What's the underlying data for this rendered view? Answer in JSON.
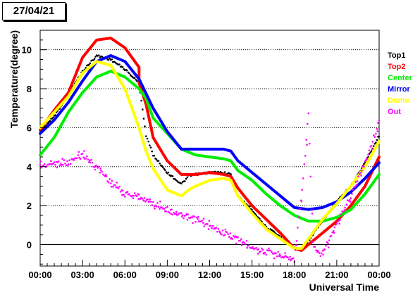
{
  "date_label": "27/04/21",
  "chart_data": {
    "type": "line",
    "title": "",
    "xlabel": "Universal Time",
    "ylabel": "Temperature(degree)",
    "xlim": [
      0,
      24
    ],
    "ylim": [
      -1.1,
      11.0
    ],
    "grid": "horizontal dotted",
    "legend_position": "right",
    "x_tick_labels": [
      "00:00",
      "03:00",
      "06:00",
      "09:00",
      "12:00",
      "15:00",
      "18:00",
      "21:00",
      "00:00"
    ],
    "x_ticks": [
      0,
      3,
      6,
      9,
      12,
      15,
      18,
      21,
      24
    ],
    "y_ticks": [
      0,
      2,
      4,
      6,
      8,
      10
    ],
    "y_tick_labels": [
      "0",
      "2",
      "4",
      "6",
      "8",
      "10"
    ],
    "series": [
      {
        "name": "Top1",
        "color": "#000000",
        "style": "dots",
        "points": [
          [
            0,
            5.8
          ],
          [
            1,
            6.6
          ],
          [
            2,
            7.7
          ],
          [
            3,
            8.9
          ],
          [
            4,
            9.7
          ],
          [
            5,
            9.5
          ],
          [
            6,
            9.0
          ],
          [
            7,
            8.3
          ],
          [
            7.5,
            5.6
          ],
          [
            8,
            4.6
          ],
          [
            9,
            3.7
          ],
          [
            10,
            3.1
          ],
          [
            10.5,
            3.5
          ],
          [
            11,
            3.6
          ],
          [
            12,
            3.7
          ],
          [
            13,
            3.7
          ],
          [
            13.5,
            3.6
          ],
          [
            14,
            2.5
          ],
          [
            15,
            1.8
          ],
          [
            16,
            0.9
          ],
          [
            17,
            0.4
          ],
          [
            18,
            -0.2
          ],
          [
            18.5,
            -0.2
          ],
          [
            19,
            0.2
          ],
          [
            20,
            1.2
          ],
          [
            21,
            2.2
          ],
          [
            22,
            3.0
          ],
          [
            23,
            4.2
          ],
          [
            24,
            5.6
          ]
        ]
      },
      {
        "name": "Top2",
        "color": "#ff0000",
        "style": "line",
        "points": [
          [
            0,
            5.9
          ],
          [
            1,
            6.9
          ],
          [
            2,
            7.8
          ],
          [
            3,
            9.6
          ],
          [
            4,
            10.5
          ],
          [
            5,
            10.6
          ],
          [
            6,
            10.1
          ],
          [
            7,
            9.1
          ],
          [
            7,
            8.3
          ],
          [
            7.5,
            7.2
          ],
          [
            8,
            5.5
          ],
          [
            9,
            4.3
          ],
          [
            10,
            3.6
          ],
          [
            11,
            3.6
          ],
          [
            12,
            3.7
          ],
          [
            13,
            3.6
          ],
          [
            13.5,
            3.5
          ],
          [
            14,
            2.9
          ],
          [
            15,
            2.0
          ],
          [
            16,
            1.3
          ],
          [
            17,
            0.6
          ],
          [
            18,
            -0.2
          ],
          [
            18.5,
            -0.3
          ],
          [
            19,
            0.0
          ],
          [
            20,
            0.6
          ],
          [
            21,
            1.2
          ],
          [
            22,
            2.0
          ],
          [
            23,
            3.0
          ],
          [
            24,
            4.5
          ]
        ]
      },
      {
        "name": "Center",
        "color": "#00ee00",
        "style": "line",
        "points": [
          [
            0,
            4.6
          ],
          [
            1,
            5.5
          ],
          [
            2,
            6.8
          ],
          [
            3,
            7.8
          ],
          [
            4,
            8.6
          ],
          [
            5,
            8.9
          ],
          [
            6,
            8.6
          ],
          [
            7,
            8.0
          ],
          [
            7.5,
            7.5
          ],
          [
            8,
            6.5
          ],
          [
            9,
            5.7
          ],
          [
            10,
            4.9
          ],
          [
            11,
            4.6
          ],
          [
            12,
            4.5
          ],
          [
            13,
            4.4
          ],
          [
            13.5,
            4.3
          ],
          [
            14,
            3.8
          ],
          [
            15,
            3.3
          ],
          [
            16,
            2.6
          ],
          [
            17,
            2.0
          ],
          [
            18,
            1.5
          ],
          [
            19,
            1.2
          ],
          [
            20,
            1.2
          ],
          [
            21,
            1.4
          ],
          [
            22,
            1.8
          ],
          [
            23,
            2.6
          ],
          [
            24,
            3.6
          ]
        ]
      },
      {
        "name": "Mirror",
        "color": "#0000ff",
        "style": "line",
        "points": [
          [
            0,
            5.7
          ],
          [
            1,
            6.4
          ],
          [
            2,
            7.3
          ],
          [
            3,
            8.4
          ],
          [
            4,
            9.4
          ],
          [
            5,
            9.7
          ],
          [
            6,
            9.4
          ],
          [
            7,
            8.5
          ],
          [
            8,
            7.0
          ],
          [
            9,
            5.8
          ],
          [
            10,
            4.9
          ],
          [
            11,
            4.9
          ],
          [
            12,
            4.9
          ],
          [
            13,
            4.9
          ],
          [
            13.5,
            4.8
          ],
          [
            14,
            4.3
          ],
          [
            15,
            3.7
          ],
          [
            16,
            3.1
          ],
          [
            17,
            2.5
          ],
          [
            18,
            1.9
          ],
          [
            19,
            1.8
          ],
          [
            20,
            1.9
          ],
          [
            21,
            2.2
          ],
          [
            22,
            2.7
          ],
          [
            23,
            3.4
          ],
          [
            24,
            4.2
          ]
        ]
      },
      {
        "name": "Dome",
        "color": "#ffff00",
        "style": "line",
        "points": [
          [
            0,
            6.0
          ],
          [
            1,
            6.8
          ],
          [
            2,
            7.6
          ],
          [
            3,
            8.8
          ],
          [
            4,
            9.4
          ],
          [
            5,
            9.2
          ],
          [
            6,
            8.0
          ],
          [
            7,
            6.0
          ],
          [
            7.5,
            4.8
          ],
          [
            8,
            3.9
          ],
          [
            9,
            2.8
          ],
          [
            10,
            2.5
          ],
          [
            10.5,
            2.8
          ],
          [
            11,
            3.0
          ],
          [
            12,
            3.3
          ],
          [
            13,
            3.4
          ],
          [
            13.5,
            3.3
          ],
          [
            14,
            2.5
          ],
          [
            15,
            1.6
          ],
          [
            16,
            0.8
          ],
          [
            17,
            0.3
          ],
          [
            18,
            -0.2
          ],
          [
            18.5,
            -0.2
          ],
          [
            19,
            0.3
          ],
          [
            20,
            1.3
          ],
          [
            21,
            2.1
          ],
          [
            22,
            3.0
          ],
          [
            23,
            4.0
          ],
          [
            24,
            5.3
          ]
        ]
      },
      {
        "name": "Out",
        "color": "#ff00ff",
        "style": "dots",
        "points": [
          [
            0,
            4.0
          ],
          [
            1,
            4.2
          ],
          [
            2,
            4.2
          ],
          [
            3,
            4.6
          ],
          [
            4,
            4.0
          ],
          [
            5,
            3.2
          ],
          [
            6,
            2.6
          ],
          [
            7,
            2.5
          ],
          [
            8,
            2.1
          ],
          [
            9,
            1.8
          ],
          [
            10,
            1.5
          ],
          [
            11,
            1.3
          ],
          [
            12,
            0.9
          ],
          [
            13,
            0.6
          ],
          [
            14,
            0.3
          ],
          [
            15,
            -0.1
          ],
          [
            16,
            -0.4
          ],
          [
            17,
            -0.5
          ],
          [
            18,
            -0.8
          ],
          [
            18.7,
            4.0
          ],
          [
            19,
            6.8
          ],
          [
            19.3,
            0.0
          ],
          [
            19.7,
            -0.5
          ],
          [
            20,
            -0.4
          ],
          [
            21,
            1.0
          ],
          [
            22,
            2.5
          ],
          [
            23,
            4.2
          ],
          [
            24,
            6.3
          ]
        ]
      }
    ]
  }
}
